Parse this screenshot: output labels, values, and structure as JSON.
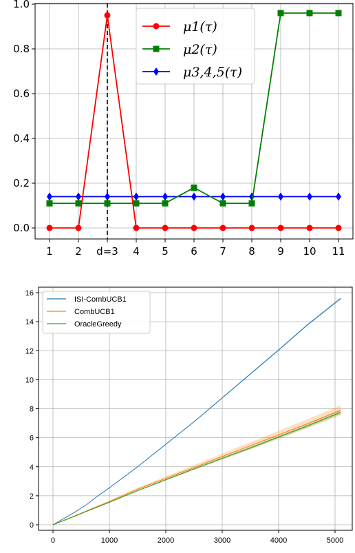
{
  "chart_data": [
    {
      "type": "line",
      "categories": [
        "1",
        "2",
        "d=3",
        "4",
        "5",
        "6",
        "7",
        "8",
        "9",
        "10",
        "11"
      ],
      "x": [
        1,
        2,
        3,
        4,
        5,
        6,
        7,
        8,
        9,
        10,
        11
      ],
      "ylim": [
        -0.05,
        1.0
      ],
      "yticks": [
        "0.0",
        "0.2",
        "0.4",
        "0.6",
        "0.8",
        "1.0"
      ],
      "yticks_values": [
        0.0,
        0.2,
        0.4,
        0.6,
        0.8,
        1.0
      ],
      "grid": true,
      "legend_position": "top-right",
      "vline": {
        "x": 3,
        "style": "dashed",
        "color": "#000000"
      },
      "series": [
        {
          "name": "μ1(τ)",
          "color": "#ff0000",
          "marker": "circle",
          "values": [
            0.0,
            0.0,
            0.95,
            0.0,
            0.0,
            0.0,
            0.0,
            0.0,
            0.0,
            0.0,
            0.0
          ]
        },
        {
          "name": "μ2(τ)",
          "color": "#008000",
          "marker": "square",
          "values": [
            0.11,
            0.11,
            0.11,
            0.11,
            0.11,
            0.18,
            0.11,
            0.11,
            0.96,
            0.96,
            0.96
          ]
        },
        {
          "name": "μ3,4,5(τ)",
          "color": "#0000ff",
          "marker": "diamond",
          "values": [
            0.14,
            0.14,
            0.14,
            0.14,
            0.14,
            0.14,
            0.14,
            0.14,
            0.14,
            0.14,
            0.14
          ]
        }
      ]
    },
    {
      "type": "line",
      "x": [
        0,
        200,
        400,
        600,
        800,
        1000,
        1500,
        2000,
        2500,
        3000,
        3500,
        4000,
        4500,
        5100
      ],
      "xlim": [
        -150,
        5250
      ],
      "ylim": [
        -0.4,
        16.4
      ],
      "xticks": [
        "0",
        "1000",
        "2000",
        "3000",
        "4000",
        "5000"
      ],
      "xticks_values": [
        0,
        1000,
        2000,
        3000,
        4000,
        5000
      ],
      "yticks": [
        "0",
        "2",
        "4",
        "6",
        "8",
        "10",
        "12",
        "14",
        "16"
      ],
      "yticks_values": [
        0,
        2,
        4,
        6,
        8,
        10,
        12,
        14,
        16
      ],
      "grid": true,
      "legend_position": "top-left",
      "series": [
        {
          "name": "ISI-CombUCB1",
          "color": "#1f77b4",
          "values": [
            0,
            0.45,
            0.9,
            1.4,
            2.0,
            2.55,
            4.0,
            5.55,
            7.1,
            8.75,
            10.4,
            12.05,
            13.75,
            15.6
          ],
          "band": 0.08
        },
        {
          "name": "CombUCB1",
          "color": "#ff7f0e",
          "values": [
            0,
            0.32,
            0.64,
            0.96,
            1.28,
            1.6,
            2.45,
            3.2,
            3.95,
            4.7,
            5.45,
            6.2,
            6.95,
            7.9
          ],
          "band": 0.35
        },
        {
          "name": "OracleGreedy",
          "color": "#2ca02c",
          "values": [
            0,
            0.3,
            0.61,
            0.93,
            1.24,
            1.55,
            2.35,
            3.1,
            3.85,
            4.58,
            5.3,
            6.05,
            6.8,
            7.75
          ],
          "band": 0.12
        }
      ]
    }
  ]
}
